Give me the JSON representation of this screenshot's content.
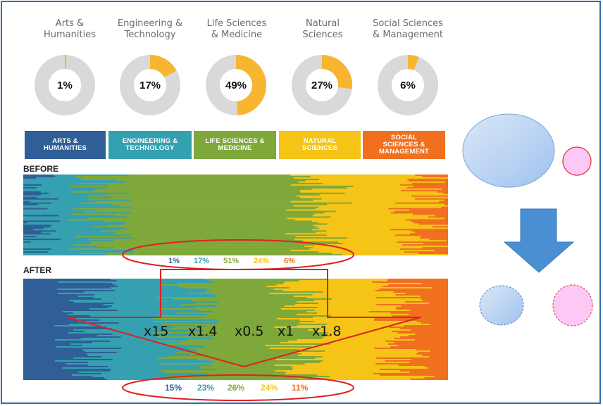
{
  "colors": {
    "arts": "#2f5f96",
    "engineering": "#35a0b0",
    "life": "#7fa83a",
    "natural": "#f5c416",
    "social": "#f07020",
    "donut_track": "#d9d9d9",
    "donut_fill": "#f8b531",
    "annotation_red": "#e02020",
    "frame_blue": "#2f6fb0",
    "big_circle": "#b8d3f3",
    "pink_circle": "#fcc8f4",
    "arrow_blue": "#4a8fd2"
  },
  "donuts": [
    {
      "title": "Arts &\nHumanities",
      "percent_label": "1%",
      "value": 1
    },
    {
      "title": "Engineering &\nTechnology",
      "percent_label": "17%",
      "value": 17
    },
    {
      "title": "Life Sciences\n& Medicine",
      "percent_label": "49%",
      "value": 49
    },
    {
      "title": "Natural\nSciences",
      "percent_label": "27%",
      "value": 27
    },
    {
      "title": "Social Sciences\n& Management",
      "percent_label": "6%",
      "value": 6
    }
  ],
  "categories": [
    {
      "label": "ARTS &\nHUMANITIES",
      "color_key": "arts"
    },
    {
      "label": "ENGINEERING &\nTECHNOLOGY",
      "color_key": "engineering"
    },
    {
      "label": "LIFE SCIENCES &\nMEDICINE",
      "color_key": "life"
    },
    {
      "label": "NATURAL\nSCIENCES",
      "color_key": "natural"
    },
    {
      "label": "SOCIAL\nSCIENCES &\nMANAGEMENT",
      "color_key": "social"
    }
  ],
  "before": {
    "label": "BEFORE",
    "percents": [
      "1%",
      "17%",
      "51%",
      "24%",
      "6%"
    ],
    "shares": [
      1,
      17,
      51,
      24,
      6
    ]
  },
  "after": {
    "label": "AFTER",
    "percents": [
      "15%",
      "23%",
      "26%",
      "24%",
      "11%"
    ],
    "shares": [
      15,
      23,
      26,
      24,
      11
    ]
  },
  "multipliers": [
    "x15",
    "x1.4",
    "x0.5",
    "x1",
    "x1.8"
  ]
}
